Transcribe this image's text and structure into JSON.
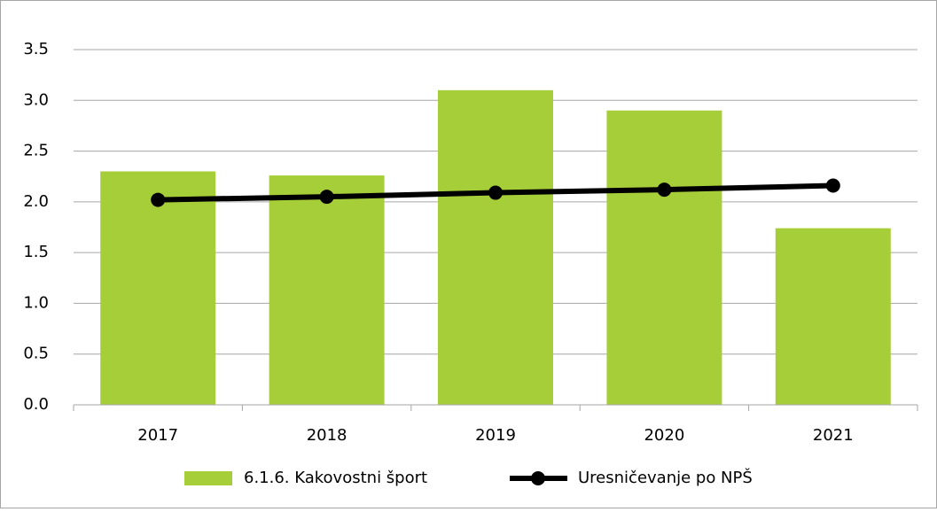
{
  "chart_data": {
    "type": "bar",
    "categories": [
      "2017",
      "2018",
      "2019",
      "2020",
      "2021"
    ],
    "series": [
      {
        "name": "6.1.6. Kakovostni šport",
        "type": "bar",
        "color": "#a6ce39",
        "values": [
          2.3,
          2.26,
          3.1,
          2.9,
          1.74
        ]
      },
      {
        "name": "Uresničevanje po NPŠ",
        "type": "line",
        "color": "#000000",
        "values": [
          2.02,
          2.05,
          2.09,
          2.12,
          2.16
        ]
      }
    ],
    "ylim": [
      0,
      3.5
    ],
    "yticks": [
      {
        "value": 0,
        "label": "0.0"
      },
      0.5,
      {
        "value": 1,
        "label": "1.0"
      },
      1.5,
      {
        "value": 2,
        "label": "2.0"
      },
      2.5,
      {
        "value": 3,
        "label": "3.0"
      },
      3.5
    ],
    "grid": true,
    "legend": "bottom"
  }
}
